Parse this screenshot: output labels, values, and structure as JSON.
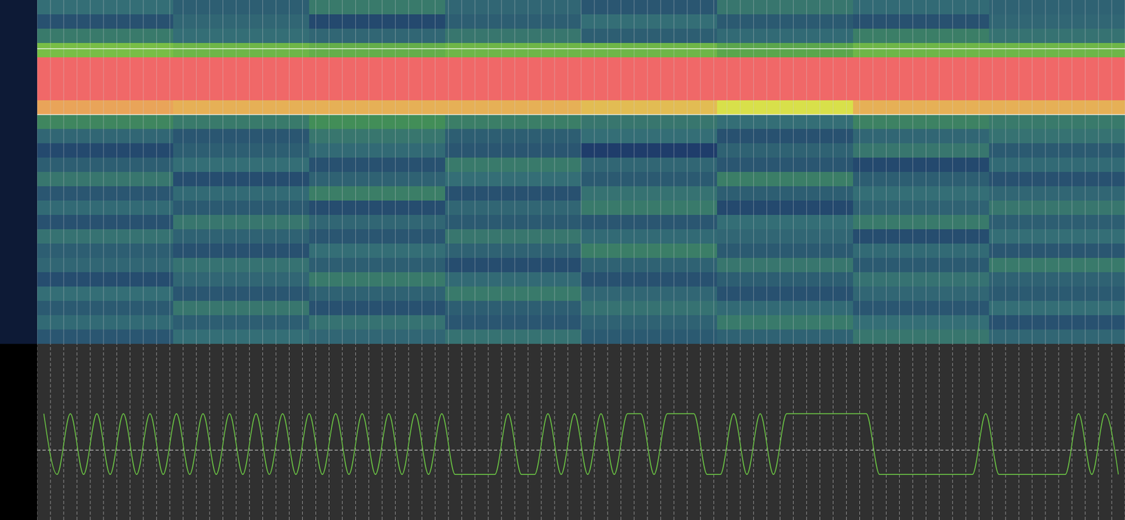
{
  "chart_data": [
    {
      "type": "heatmap",
      "cells": [
        [
          0.42,
          0.38,
          0.45,
          0.4,
          0.36,
          0.44,
          0.41,
          0.39
        ],
        [
          0.35,
          0.4,
          0.33,
          0.38,
          0.42,
          0.37,
          0.35,
          0.4
        ],
        [
          0.45,
          0.42,
          0.4,
          0.44,
          0.38,
          0.41,
          0.46,
          0.43
        ],
        [
          0.62,
          0.6,
          0.58,
          0.6,
          0.6,
          0.56,
          0.6,
          0.6
        ],
        [
          1,
          1,
          1,
          1,
          1,
          1,
          1,
          1
        ],
        [
          1,
          1,
          1,
          1,
          1,
          1,
          1,
          1
        ],
        [
          1,
          1,
          1,
          1,
          1,
          1,
          1,
          1
        ],
        [
          0.82,
          0.8,
          0.8,
          0.8,
          0.78,
          0.72,
          0.8,
          0.8
        ],
        [
          0.48,
          0.45,
          0.5,
          0.46,
          0.44,
          0.42,
          0.47,
          0.45
        ],
        [
          0.4,
          0.36,
          0.44,
          0.38,
          0.42,
          0.35,
          0.4,
          0.43
        ],
        [
          0.33,
          0.38,
          0.41,
          0.36,
          0.3,
          0.39,
          0.44,
          0.37
        ],
        [
          0.38,
          0.42,
          0.35,
          0.45,
          0.4,
          0.36,
          0.33,
          0.41
        ],
        [
          0.44,
          0.34,
          0.39,
          0.42,
          0.37,
          0.46,
          0.38,
          0.35
        ],
        [
          0.36,
          0.41,
          0.46,
          0.35,
          0.43,
          0.38,
          0.42,
          0.4
        ],
        [
          0.41,
          0.37,
          0.34,
          0.4,
          0.45,
          0.33,
          0.39,
          0.44
        ],
        [
          0.35,
          0.44,
          0.4,
          0.37,
          0.36,
          0.42,
          0.45,
          0.38
        ],
        [
          0.43,
          0.39,
          0.36,
          0.44,
          0.41,
          0.4,
          0.34,
          0.42
        ],
        [
          0.38,
          0.35,
          0.42,
          0.39,
          0.46,
          0.37,
          0.41,
          0.36
        ],
        [
          0.4,
          0.43,
          0.38,
          0.34,
          0.39,
          0.44,
          0.37,
          0.45
        ],
        [
          0.34,
          0.4,
          0.45,
          0.41,
          0.35,
          0.38,
          0.43,
          0.39
        ],
        [
          0.42,
          0.36,
          0.39,
          0.45,
          0.4,
          0.35,
          0.4,
          0.37
        ],
        [
          0.37,
          0.44,
          0.35,
          0.38,
          0.43,
          0.41,
          0.36,
          0.42
        ],
        [
          0.41,
          0.38,
          0.43,
          0.36,
          0.39,
          0.45,
          0.42,
          0.35
        ],
        [
          0.36,
          0.42,
          0.4,
          0.43,
          0.37,
          0.39,
          0.44,
          0.4
        ]
      ],
      "color_range": [
        0,
        1
      ],
      "xlim": [
        0,
        82
      ],
      "ylim": [
        0,
        24
      ],
      "xticks": [
        0,
        1,
        2,
        3,
        4,
        5,
        6,
        7,
        8,
        9,
        10,
        11,
        12,
        13,
        14,
        15,
        16,
        17,
        18,
        19,
        20,
        21,
        22,
        23,
        24,
        25,
        26,
        27,
        28,
        29,
        30,
        31,
        32,
        33,
        34,
        35,
        36,
        37,
        38,
        39,
        40,
        41,
        42,
        43,
        44,
        45,
        46,
        47,
        48,
        49,
        50,
        51,
        52,
        53,
        54,
        55,
        56,
        57,
        58,
        59,
        60,
        61,
        62,
        63,
        64,
        65,
        66,
        67,
        68,
        69,
        70,
        71,
        72,
        73,
        74,
        75,
        76,
        77,
        78,
        79,
        80,
        81,
        82
      ],
      "selection": [
        3.4,
        8
      ],
      "grid": true,
      "tick_labels": false
    },
    {
      "type": "line",
      "x": [
        0.5,
        1.5,
        2.5,
        3.5,
        4.5,
        5.5,
        6.5,
        7.5,
        8.5,
        9.5,
        10.5,
        11.5,
        12.5,
        13.5,
        14.5,
        15.5,
        16.5,
        17.5,
        18.5,
        19.5,
        20.5,
        21.5,
        22.5,
        23.5,
        24.5,
        25.5,
        26.5,
        27.5,
        28.5,
        29.5,
        30.5,
        31.5,
        32.5,
        33.5,
        34.5,
        35.5,
        36.5,
        37.5,
        38.5,
        39.5,
        40.5,
        41.5,
        42.5,
        43.5,
        44.5,
        45.5,
        46.5,
        47.5,
        48.5,
        49.5,
        50.5,
        51.5,
        52.5,
        53.5,
        54.5,
        55.5,
        56.5,
        57.5,
        58.5,
        59.5,
        60.5,
        61.5,
        62.5,
        63.5,
        64.5,
        65.5,
        66.5,
        67.5,
        68.5,
        69.5,
        70.5,
        71.5,
        72.5,
        73.5,
        74.5,
        75.5,
        76.5,
        77.5,
        78.5,
        79.5,
        80.5,
        81.5
      ],
      "values": [
        1,
        -1,
        1,
        -1,
        1,
        -1,
        1,
        -1,
        1,
        -1,
        1,
        -1,
        1,
        -1,
        1,
        -1,
        1,
        -1,
        1,
        -1,
        1,
        -1,
        1,
        -1,
        1,
        -1,
        1,
        -1,
        1,
        -1,
        1,
        -1,
        -1,
        -1,
        -1,
        1,
        -1,
        -1,
        1,
        -1,
        1,
        -1,
        1,
        -1,
        1,
        1,
        -1,
        1,
        1,
        1,
        -1,
        -1,
        1,
        -1,
        1,
        -1,
        1,
        1,
        1,
        1,
        1,
        1,
        1,
        -1,
        -1,
        -1,
        -1,
        -1,
        -1,
        -1,
        -1,
        1,
        -1,
        -1,
        -1,
        -1,
        -1,
        -1,
        1,
        -1,
        1,
        -1
      ],
      "xlim": [
        0,
        82
      ],
      "ylim": [
        -2.5,
        3.3
      ],
      "xticks": [
        0,
        1,
        2,
        3,
        4,
        5,
        6,
        7,
        8,
        9,
        10,
        11,
        12,
        13,
        14,
        15,
        16,
        17,
        18,
        19,
        20,
        21,
        22,
        23,
        24,
        25,
        26,
        27,
        28,
        29,
        30,
        31,
        32,
        33,
        34,
        35,
        36,
        37,
        38,
        39,
        40,
        41,
        42,
        43,
        44,
        45,
        46,
        47,
        48,
        49,
        50,
        51,
        52,
        53,
        54,
        55,
        56,
        57,
        58,
        59,
        60,
        61,
        62,
        63,
        64,
        65,
        66,
        67,
        68,
        69,
        70,
        71,
        72,
        73,
        74,
        75,
        76,
        77,
        78,
        79,
        80,
        81,
        82
      ],
      "threshold": -0.2,
      "color": "#6cc644",
      "grid": true,
      "tick_labels": false
    }
  ]
}
